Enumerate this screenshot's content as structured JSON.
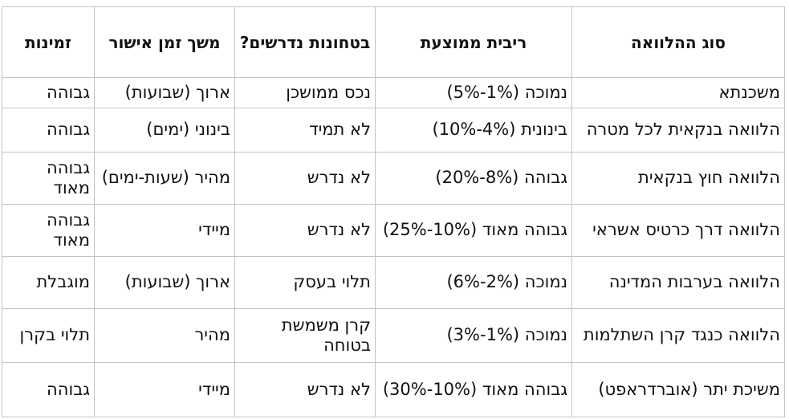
{
  "table": {
    "headers": [
      "סוג ההלוואה",
      "ריבית ממוצעת",
      "בטחונות נדרשים?",
      "משך זמן אישור",
      "זמינות"
    ],
    "rows": [
      [
        "משכנתא",
        "נמוכה (1%-5%)",
        "נכס ממושכן",
        "ארוך (שבועות)",
        "גבוהה"
      ],
      [
        "הלוואה בנקאית לכל מטרה",
        "בינונית (4%-10%)",
        "לא תמיד",
        "בינוני (ימים)",
        "גבוהה"
      ],
      [
        "הלוואה חוץ בנקאית",
        "גבוהה (8%-20%)",
        "לא נדרש",
        "מהיר (שעות-ימים)",
        "גבוהה מאוד"
      ],
      [
        "הלוואה דרך כרטיס אשראי",
        "גבוהה מאוד (10%-25%)",
        "לא נדרש",
        "מיידי",
        "גבוהה מאוד"
      ],
      [
        "הלוואה בערבות המדינה",
        "נמוכה (2%-6%)",
        "תלוי בעסק",
        "ארוך (שבועות)",
        "מוגבלת"
      ],
      [
        "הלוואה כנגד קרן השתלמות",
        "נמוכה (1%-3%)",
        "קרן משמשת בטוחה",
        "מהיר",
        "תלוי בקרן"
      ],
      [
        "משיכת יתר (אוברדראפט)",
        "גבוהה מאוד (10%-30%)",
        "לא נדרש",
        "מיידי",
        "גבוהה"
      ]
    ]
  }
}
